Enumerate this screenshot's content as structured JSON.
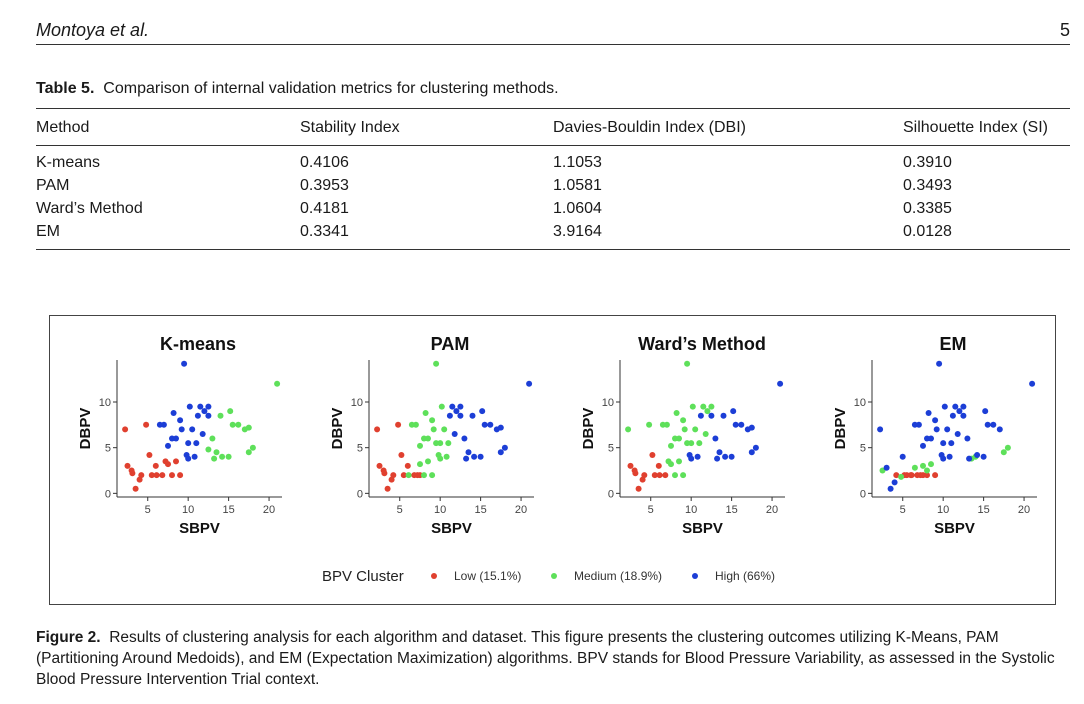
{
  "header": {
    "author": "Montoya et al.",
    "page_number": "5"
  },
  "table": {
    "label": "Table 5.",
    "caption": "Comparison of internal validation metrics for clustering methods.",
    "columns": [
      "Method",
      "Stability Index",
      "Davies-Bouldin Index (DBI)",
      "Silhouette Index (SI)"
    ],
    "rows": [
      [
        "K-means",
        "0.4106",
        "1.1053",
        "0.3910"
      ],
      [
        "PAM",
        "0.3953",
        "1.0581",
        "0.3493"
      ],
      [
        "Ward’s Method",
        "0.4181",
        "1.0604",
        "0.3385"
      ],
      [
        "EM",
        "0.3341",
        "3.9164",
        "0.0128"
      ]
    ]
  },
  "figure": {
    "label": "Figure 2.",
    "caption": "Results of clustering analysis for each algorithm and dataset. This figure presents the clustering outcomes utilizing K-Means, PAM (Partitioning Around Medoids), and EM (Expectation Maximization) algorithms. BPV stands for Blood Pressure Variability, as assessed in the Systolic Blood Pressure Intervention Trial context.",
    "legend_title": "BPV Cluster",
    "legend_items": [
      {
        "label": "Low (15.1%)",
        "color": "#e0402f"
      },
      {
        "label": "Medium (18.9%)",
        "color": "#5ee05a"
      },
      {
        "label": "High (66%)",
        "color": "#1c3ed6"
      }
    ]
  },
  "chart_data": [
    {
      "type": "scatter",
      "title": "K-means",
      "xlabel": "SBPV",
      "ylabel": "DBPV",
      "xlim": [
        1.2,
        21.6
      ],
      "ylim": [
        -0.4,
        14.6
      ],
      "xticks": [
        "5",
        "10",
        "15",
        "20"
      ],
      "yticks": [
        "0",
        "5",
        "10"
      ],
      "series": [
        {
          "name": "Low",
          "color": "#e0402f",
          "x": [
            2.2,
            2.5,
            3,
            3.1,
            3.5,
            4,
            4.2,
            4.8,
            5.2,
            5.5,
            6,
            6.1,
            6.8,
            7.2,
            7.5,
            8,
            8.5,
            9
          ],
          "y": [
            7,
            3,
            2.5,
            2.2,
            0.5,
            1.5,
            2,
            7.5,
            4.2,
            2,
            3,
            2,
            2,
            3.5,
            3.2,
            2,
            3.5,
            2
          ]
        },
        {
          "name": "Medium",
          "color": "#5ee05a",
          "x": [
            12.5,
            13,
            13.2,
            13.5,
            14,
            14.2,
            15,
            15.2,
            15.5,
            16.2,
            17,
            17.5,
            17.5,
            18,
            21
          ],
          "y": [
            4.8,
            6,
            3.8,
            4.5,
            8.5,
            4,
            4,
            9,
            7.5,
            7.5,
            7,
            4.5,
            7.2,
            5,
            12
          ]
        },
        {
          "name": "High",
          "color": "#1c3ed6",
          "x": [
            6.5,
            7,
            7.5,
            8,
            8.2,
            8.5,
            9,
            9.2,
            9.5,
            9.8,
            10,
            10,
            10.2,
            10.5,
            10.8,
            11,
            11.2,
            11.5,
            11.8,
            12,
            12.5,
            12.5
          ],
          "y": [
            7.5,
            7.5,
            5.2,
            6,
            8.8,
            6,
            8,
            7,
            14.2,
            4.2,
            5.5,
            3.8,
            9.5,
            7,
            4,
            5.5,
            8.5,
            9.5,
            6.5,
            9,
            8.5,
            9.5
          ]
        }
      ]
    },
    {
      "type": "scatter",
      "title": "PAM",
      "xlabel": "SBPV",
      "ylabel": "DBPV",
      "xlim": [
        1.2,
        21.6
      ],
      "ylim": [
        -0.4,
        14.6
      ],
      "xticks": [
        "5",
        "10",
        "15",
        "20"
      ],
      "yticks": [
        "0",
        "5",
        "10"
      ],
      "series": [
        {
          "name": "Low",
          "color": "#e0402f",
          "x": [
            2.2,
            2.5,
            3,
            3.1,
            3.5,
            4,
            4.2,
            4.8,
            5.2,
            5.5,
            6,
            6.8,
            7.2,
            7.5
          ],
          "y": [
            7,
            3,
            2.5,
            2.2,
            0.5,
            1.5,
            2,
            7.5,
            4.2,
            2,
            3,
            2,
            2,
            2
          ]
        },
        {
          "name": "Medium",
          "color": "#5ee05a",
          "x": [
            6.1,
            6.5,
            7,
            7.5,
            7.5,
            8,
            8,
            8.2,
            8.5,
            8.5,
            9,
            9,
            9.2,
            9.5,
            9.5,
            9.8,
            10,
            10,
            10.2,
            10.5,
            10.8,
            11
          ],
          "y": [
            2,
            7.5,
            7.5,
            5.2,
            3.2,
            2,
            6,
            8.8,
            6,
            3.5,
            8,
            2,
            7,
            14.2,
            5.5,
            4.2,
            3.8,
            5.5,
            9.5,
            7,
            4,
            5.5
          ]
        },
        {
          "name": "High",
          "color": "#1c3ed6",
          "x": [
            11.2,
            11.5,
            11.8,
            12,
            12.5,
            12.5,
            13,
            13.2,
            13.5,
            14,
            14.2,
            15,
            15.2,
            15.5,
            16.2,
            17,
            17.5,
            17.5,
            18,
            21
          ],
          "y": [
            8.5,
            9.5,
            6.5,
            9,
            8.5,
            9.5,
            6,
            3.8,
            4.5,
            8.5,
            4,
            4,
            9,
            7.5,
            7.5,
            7,
            4.5,
            7.2,
            5,
            12
          ]
        }
      ]
    },
    {
      "type": "scatter",
      "title": "Ward’s Method",
      "xlabel": "SBPV",
      "ylabel": "DBPV",
      "xlim": [
        1.2,
        21.6
      ],
      "ylim": [
        -0.4,
        14.6
      ],
      "xticks": [
        "5",
        "10",
        "15",
        "20"
      ],
      "yticks": [
        "0",
        "5",
        "10"
      ],
      "series": [
        {
          "name": "Low",
          "color": "#e0402f",
          "x": [
            2.5,
            3,
            3.1,
            3.5,
            4,
            4.2,
            5.2,
            5.5,
            6,
            6.1,
            6.8
          ],
          "y": [
            3,
            2.5,
            2.2,
            0.5,
            1.5,
            2,
            4.2,
            2,
            3,
            2,
            2
          ]
        },
        {
          "name": "Medium",
          "color": "#5ee05a",
          "x": [
            2.2,
            4.8,
            6.5,
            7,
            7.2,
            7.5,
            7.5,
            8,
            8,
            8.2,
            8.5,
            8.5,
            9,
            9,
            9.2,
            9.5,
            9.5,
            10,
            10.2,
            10.5,
            11,
            11.5,
            11.8,
            12,
            12.5
          ],
          "y": [
            7,
            7.5,
            7.5,
            7.5,
            3.5,
            5.2,
            3.2,
            6,
            2,
            8.8,
            6,
            3.5,
            8,
            2,
            7,
            14.2,
            5.5,
            5.5,
            9.5,
            7,
            5.5,
            9.5,
            6.5,
            9,
            9.5
          ]
        },
        {
          "name": "High",
          "color": "#1c3ed6",
          "x": [
            9.8,
            10,
            10.8,
            11.2,
            12.5,
            13,
            13.2,
            13.5,
            14,
            14.2,
            15,
            15.2,
            15.5,
            16.2,
            17,
            17.5,
            17.5,
            18,
            21
          ],
          "y": [
            4.2,
            3.8,
            4,
            8.5,
            8.5,
            6,
            3.8,
            4.5,
            8.5,
            4,
            4,
            9,
            7.5,
            7.5,
            7,
            4.5,
            7.2,
            5,
            12
          ]
        }
      ]
    },
    {
      "type": "scatter",
      "title": "EM",
      "xlabel": "SBPV",
      "ylabel": "DBPV",
      "xlim": [
        1.2,
        21.6
      ],
      "ylim": [
        -0.4,
        14.6
      ],
      "xticks": [
        "5",
        "10",
        "15",
        "20"
      ],
      "yticks": [
        "0",
        "5",
        "10"
      ],
      "series": [
        {
          "name": "Low",
          "color": "#e0402f",
          "x": [
            4.2,
            5.2,
            5.5,
            6,
            6.1,
            6.8,
            7.2,
            7.5,
            8,
            9
          ],
          "y": [
            2,
            2,
            2,
            2,
            2,
            2,
            2,
            2,
            2,
            2
          ]
        },
        {
          "name": "Medium",
          "color": "#5ee05a",
          "x": [
            2.5,
            4.8,
            6.5,
            7.5,
            8,
            8.5,
            13.5,
            14,
            17.5,
            18
          ],
          "y": [
            2.5,
            1.8,
            2.8,
            3,
            2.5,
            3.2,
            3.8,
            4,
            4.5,
            5
          ]
        },
        {
          "name": "High",
          "color": "#1c3ed6",
          "x": [
            2.2,
            3,
            3.5,
            4,
            5,
            6.5,
            7,
            7.5,
            8,
            8.2,
            8.5,
            9,
            9.2,
            9.5,
            9.8,
            10,
            10,
            10.2,
            10.5,
            10.8,
            11,
            11.2,
            11.5,
            11.8,
            12,
            12.5,
            12.5,
            13,
            13.2,
            14.2,
            15,
            15.2,
            15.5,
            16.2,
            17,
            21
          ],
          "y": [
            7,
            2.8,
            0.5,
            1.2,
            4,
            7.5,
            7.5,
            5.2,
            6,
            8.8,
            6,
            8,
            7,
            14.2,
            4.2,
            5.5,
            3.8,
            9.5,
            7,
            4,
            5.5,
            8.5,
            9.5,
            6.5,
            9,
            8.5,
            9.5,
            6,
            3.8,
            4.2,
            4,
            9,
            7.5,
            7.5,
            7,
            12
          ]
        }
      ]
    }
  ]
}
